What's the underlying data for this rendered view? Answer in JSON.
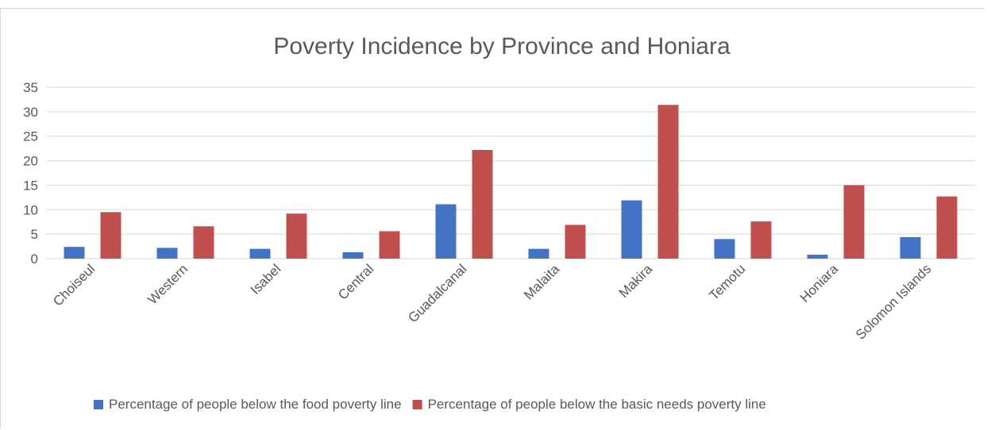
{
  "chart_data": {
    "type": "bar",
    "title": "Poverty Incidence by Province and Honiara",
    "xlabel": "",
    "ylabel": "",
    "ylim": [
      0,
      35
    ],
    "yticks": [
      0,
      5,
      10,
      15,
      20,
      25,
      30,
      35
    ],
    "grid": true,
    "legend_position": "bottom",
    "categories": [
      "Choiseul",
      "Western",
      "Isabel",
      "Central",
      "Guadalcanal",
      "Malaita",
      "Makira",
      "Temotu",
      "Honiara",
      "Solomon Islands"
    ],
    "series": [
      {
        "name": "Percentage of people below the food poverty line",
        "color": "#4472c4",
        "values": [
          2.4,
          2.2,
          2.0,
          1.3,
          11.1,
          2.0,
          11.9,
          4.0,
          0.8,
          4.4
        ]
      },
      {
        "name": "Percentage of people below the basic needs poverty line",
        "color": "#c0504d",
        "values": [
          9.5,
          6.6,
          9.2,
          5.6,
          22.2,
          6.9,
          31.4,
          7.6,
          15.0,
          12.7
        ]
      }
    ]
  }
}
